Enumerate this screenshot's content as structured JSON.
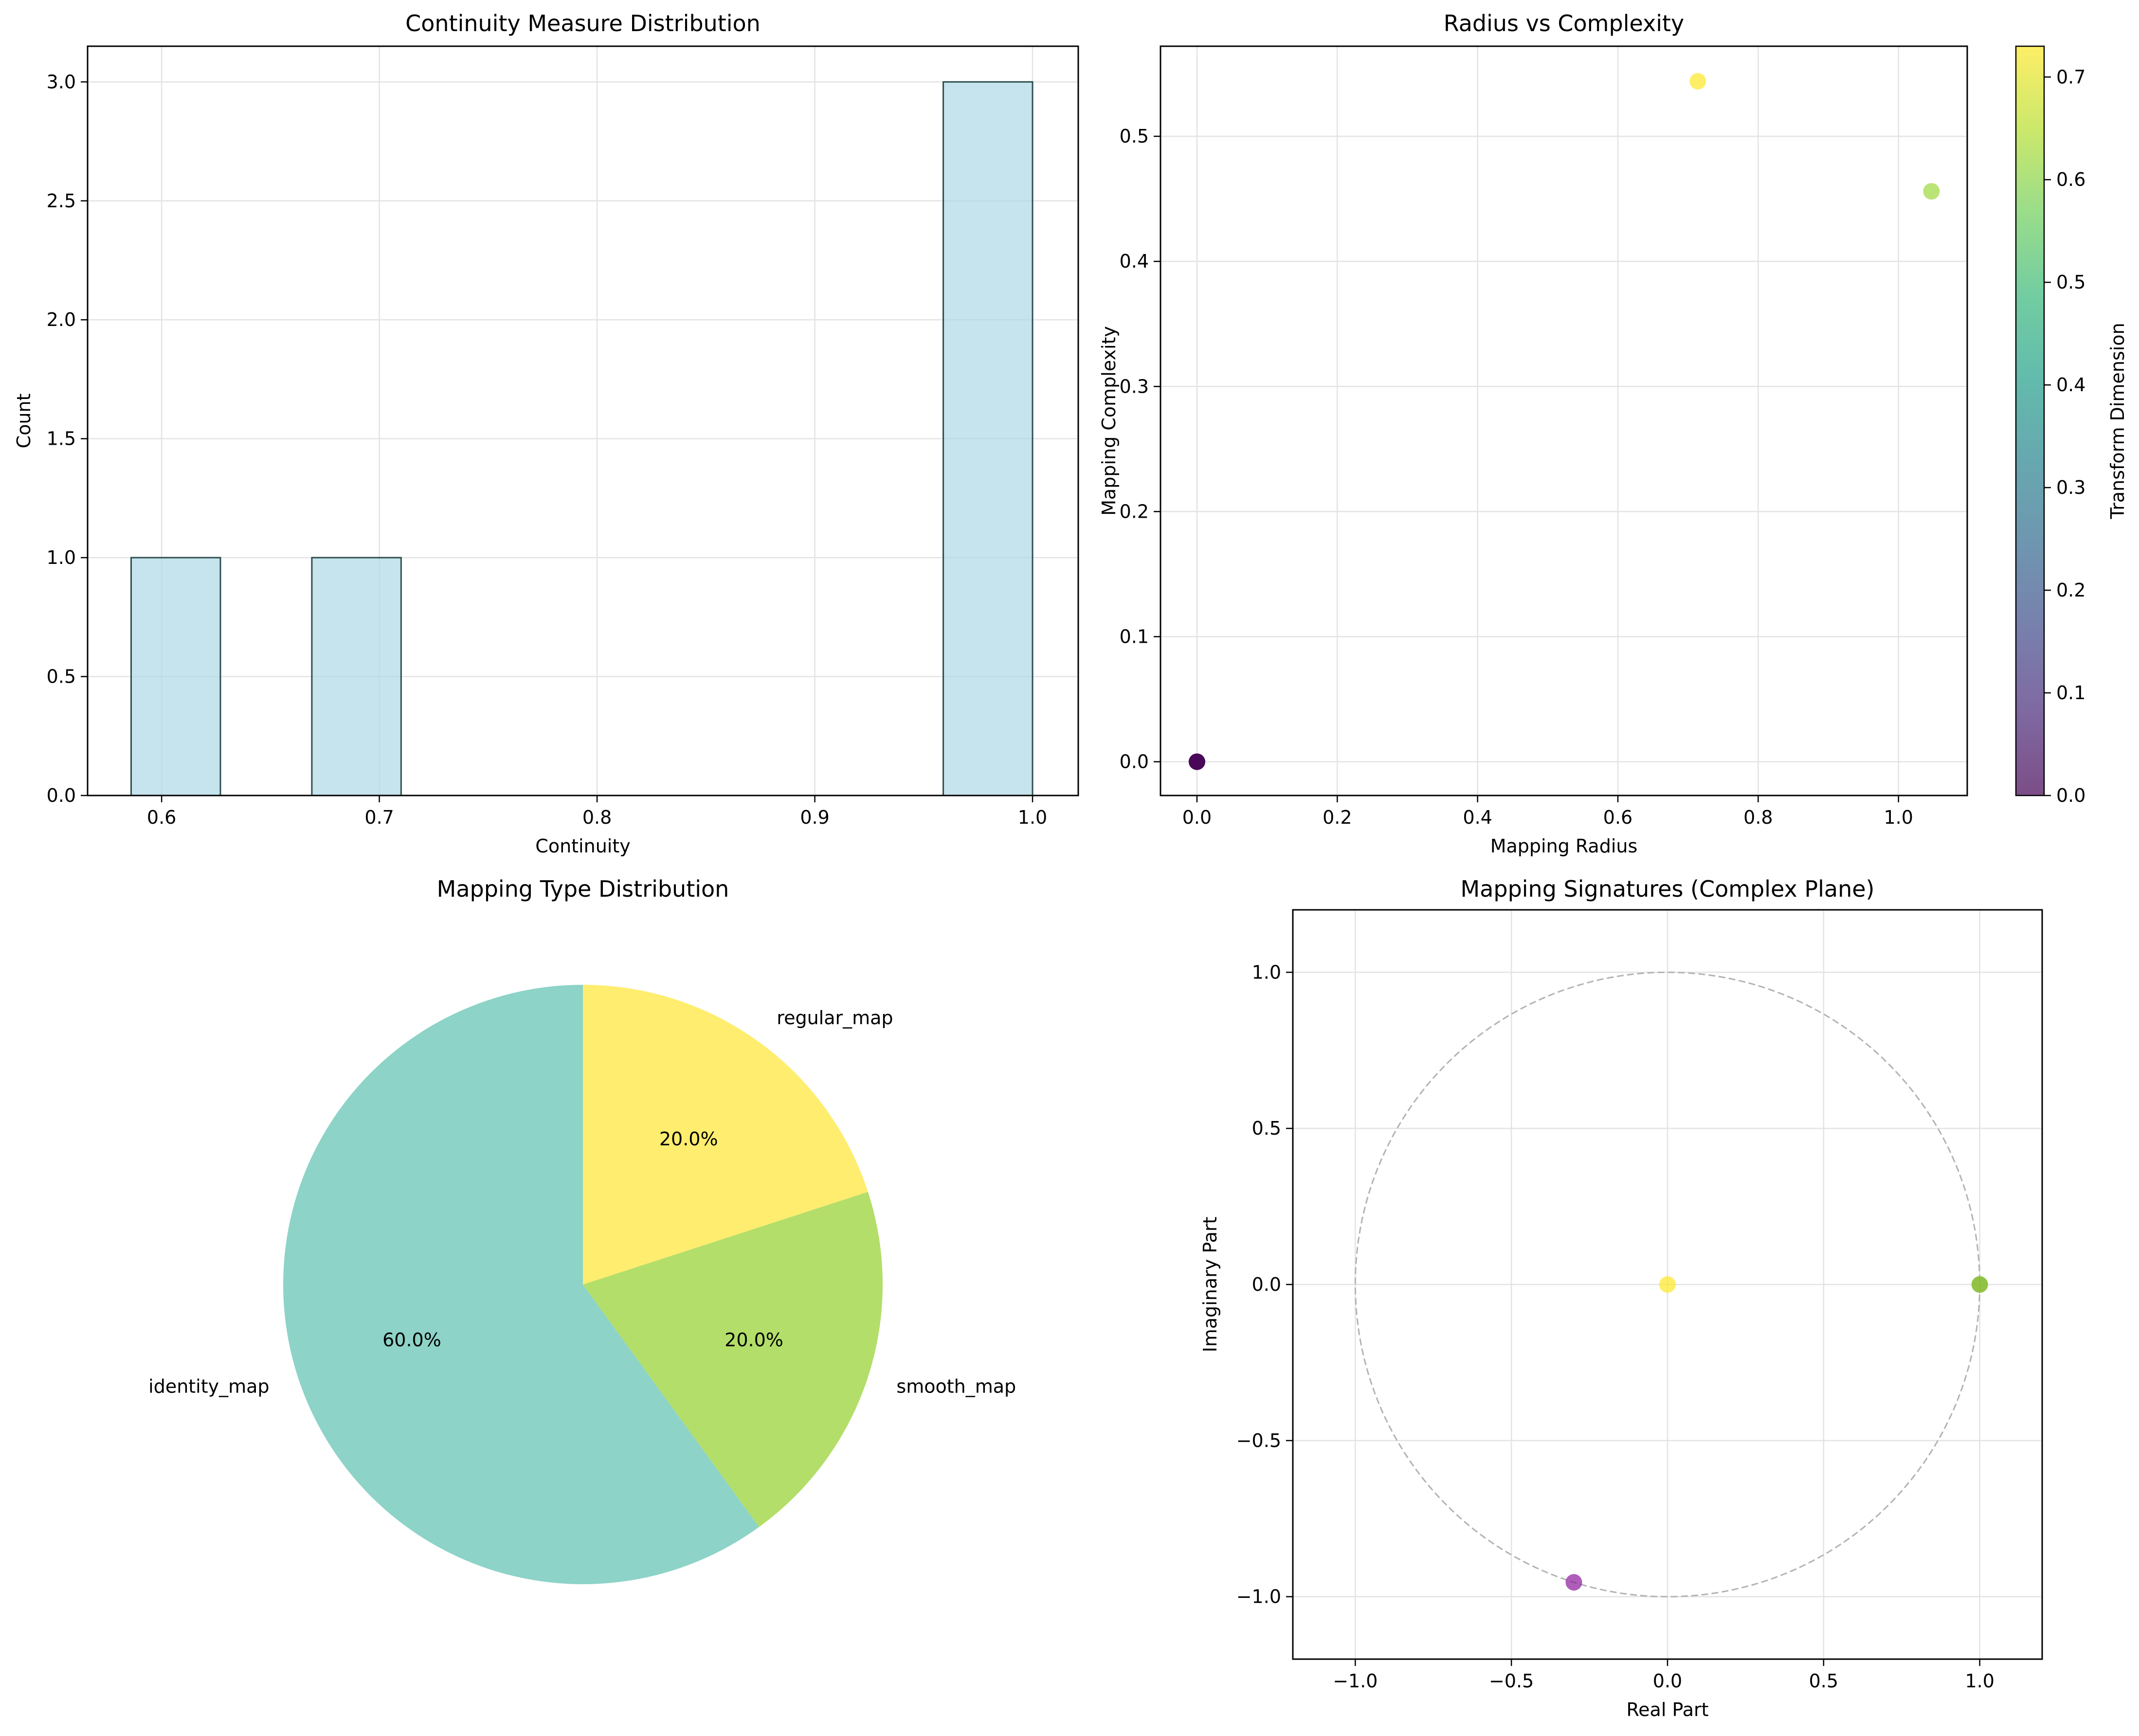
{
  "colors": {
    "hist_fill": "#add8e6",
    "hist_edge": "#2f4f4f",
    "grid": "#e3e3e3",
    "unit_circle": "#b3b3b3",
    "viridis": [
      "#440154",
      "#482878",
      "#3e4989",
      "#31688e",
      "#26828e",
      "#1f9e89",
      "#35b779",
      "#6ece58",
      "#b5de2b",
      "#fde725"
    ],
    "pie": [
      "#8dd3c7",
      "#b3de69",
      "#ffed6f"
    ]
  },
  "chart_data": [
    {
      "type": "bar",
      "subtype": "histogram",
      "title": "Continuity Measure Distribution",
      "xlabel": "Continuity",
      "ylabel": "Count",
      "xlim": [
        0.566,
        1.021
      ],
      "ylim": [
        0,
        3.15
      ],
      "xticks": [
        0.6,
        0.7,
        0.8,
        0.9,
        1.0
      ],
      "xtick_labels": [
        "0.6",
        "0.7",
        "0.8",
        "0.9",
        "1.0"
      ],
      "yticks": [
        0.0,
        0.5,
        1.0,
        1.5,
        2.0,
        2.5,
        3.0
      ],
      "ytick_labels": [
        "0.0",
        "0.5",
        "1.0",
        "1.5",
        "2.0",
        "2.5",
        "3.0"
      ],
      "grid": true,
      "bins": [
        {
          "x0": 0.586,
          "x1": 0.627,
          "count": 1
        },
        {
          "x0": 0.627,
          "x1": 0.669,
          "count": 0
        },
        {
          "x0": 0.669,
          "x1": 0.71,
          "count": 1
        },
        {
          "x0": 0.71,
          "x1": 0.752,
          "count": 0
        },
        {
          "x0": 0.752,
          "x1": 0.793,
          "count": 0
        },
        {
          "x0": 0.793,
          "x1": 0.834,
          "count": 0
        },
        {
          "x0": 0.834,
          "x1": 0.876,
          "count": 0
        },
        {
          "x0": 0.876,
          "x1": 0.917,
          "count": 0
        },
        {
          "x0": 0.917,
          "x1": 0.959,
          "count": 0
        },
        {
          "x0": 0.959,
          "x1": 1.0,
          "count": 3
        }
      ]
    },
    {
      "type": "scatter",
      "title": "Radius vs Complexity",
      "xlabel": "Mapping Radius",
      "ylabel": "Mapping Complexity",
      "xlim": [
        -0.052,
        1.098
      ],
      "ylim": [
        -0.027,
        0.572
      ],
      "xticks": [
        0.0,
        0.2,
        0.4,
        0.6,
        0.8,
        1.0
      ],
      "xtick_labels": [
        "0.0",
        "0.2",
        "0.4",
        "0.6",
        "0.8",
        "1.0"
      ],
      "yticks": [
        0.0,
        0.1,
        0.2,
        0.3,
        0.4,
        0.5
      ],
      "ytick_labels": [
        "0.0",
        "0.1",
        "0.2",
        "0.3",
        "0.4",
        "0.5"
      ],
      "grid": true,
      "colorbar": {
        "label": "Transform Dimension",
        "range": [
          0,
          0.73
        ],
        "ticks": [
          0.0,
          0.1,
          0.2,
          0.3,
          0.4,
          0.5,
          0.6,
          0.7
        ],
        "tick_labels": [
          "0.0",
          "0.1",
          "0.2",
          "0.3",
          "0.4",
          "0.5",
          "0.6",
          "0.7"
        ]
      },
      "points": [
        {
          "x": 0.0,
          "y": 0.0,
          "c": 0.0
        },
        {
          "x": 0.0,
          "y": 0.0,
          "c": 0.0
        },
        {
          "x": 0.0,
          "y": 0.0,
          "c": 0.0
        },
        {
          "x": 0.714,
          "y": 0.544,
          "c": 0.73
        },
        {
          "x": 1.047,
          "y": 0.456,
          "c": 0.62
        }
      ]
    },
    {
      "type": "pie",
      "title": "Mapping Type Distribution",
      "labels": [
        "identity_map",
        "smooth_map",
        "regular_map"
      ],
      "values": [
        60.0,
        20.0,
        20.0
      ],
      "pct_labels": [
        "60.0%",
        "20.0%",
        "20.0%"
      ],
      "start_angle_deg": 90
    },
    {
      "type": "scatter",
      "title": "Mapping Signatures (Complex Plane)",
      "xlabel": "Real Part",
      "ylabel": "Imaginary Part",
      "xlim": [
        -1.2,
        1.2
      ],
      "ylim": [
        -1.2,
        1.2
      ],
      "xticks": [
        -1.0,
        -0.5,
        0.0,
        0.5,
        1.0
      ],
      "xtick_labels": [
        "−1.0",
        "−0.5",
        "0.0",
        "0.5",
        "1.0"
      ],
      "yticks": [
        -1.0,
        -0.5,
        0.0,
        0.5,
        1.0
      ],
      "ytick_labels": [
        "−1.0",
        "−0.5",
        "0.0",
        "0.5",
        "1.0"
      ],
      "grid": true,
      "unit_circle": true,
      "points": [
        {
          "x": 0.0,
          "y": 0.0,
          "color": "#fde725"
        },
        {
          "x": 1.0,
          "y": 0.0,
          "color": "#b5de2b"
        },
        {
          "x": 1.0,
          "y": 0.0,
          "color": "#7ab337"
        },
        {
          "x": -0.3,
          "y": -0.954,
          "color": "#8b1a9b"
        }
      ]
    }
  ]
}
